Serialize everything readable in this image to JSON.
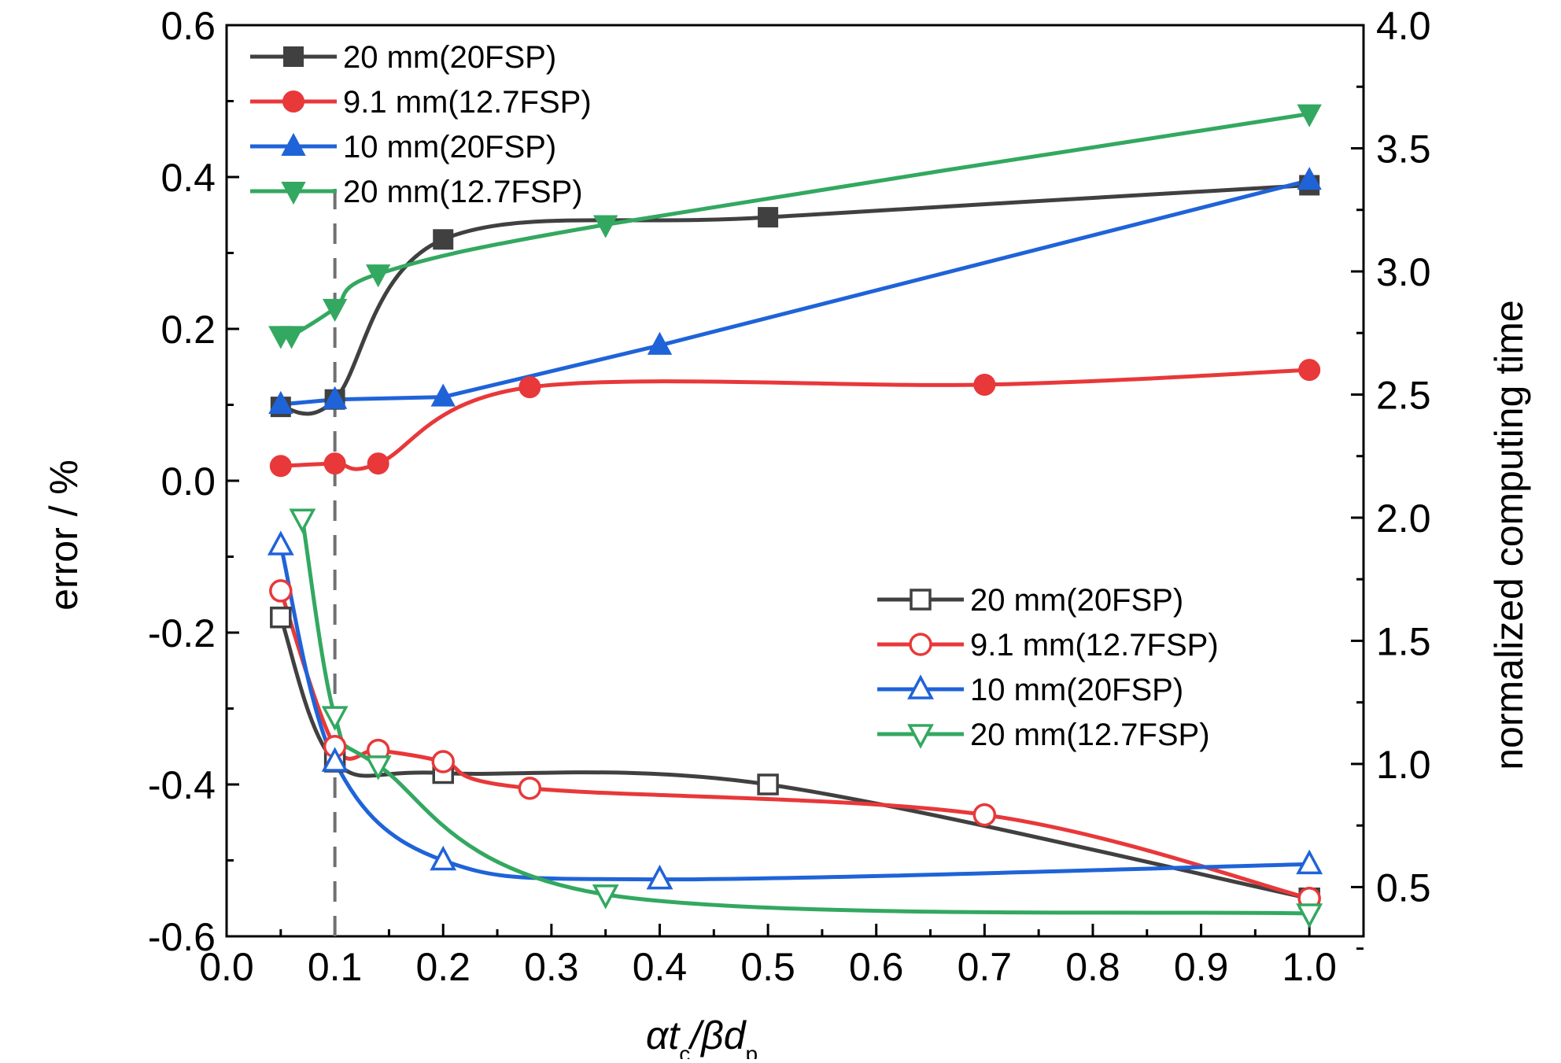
{
  "chart_data": {
    "type": "line",
    "xlabel_parts": [
      "αt",
      "c",
      "/βd",
      "p"
    ],
    "ylabel_left": "error / %",
    "ylabel_right": "normalized computing time",
    "xlim": [
      0.0,
      1.05
    ],
    "ylim_left": [
      -0.6,
      0.6
    ],
    "ylim_right": [
      0.3,
      4.0
    ],
    "x_ticks": [
      "0.0",
      "0.1",
      "0.2",
      "0.3",
      "0.4",
      "0.5",
      "0.6",
      "0.7",
      "0.8",
      "0.9",
      "1.0"
    ],
    "y_left_ticks": [
      "-0.6",
      "-0.4",
      "-0.2",
      "0.0",
      "0.2",
      "0.4",
      "0.6"
    ],
    "y_right_ticks": [
      "0.5",
      "1.0",
      "1.5",
      "2.0",
      "2.5",
      "3.0",
      "3.5",
      "4.0"
    ],
    "reference_line_x": 0.1,
    "grid": false,
    "colors": {
      "black": "#404040",
      "red": "#e8383a",
      "blue": "#1f63d8",
      "green": "#33a860",
      "dash": "#707070"
    },
    "legend_top": [
      {
        "label": "20 mm(20FSP)",
        "color": "black",
        "marker": "square"
      },
      {
        "label": "9.1 mm(12.7FSP)",
        "color": "red",
        "marker": "circle"
      },
      {
        "label": "10 mm(20FSP)",
        "color": "blue",
        "marker": "triangle-up"
      },
      {
        "label": "20 mm(12.7FSP)",
        "color": "green",
        "marker": "triangle-down"
      }
    ],
    "legend_bottom": [
      {
        "label": "20 mm(20FSP)",
        "color": "black",
        "marker": "square"
      },
      {
        "label": "9.1 mm(12.7FSP)",
        "color": "red",
        "marker": "circle"
      },
      {
        "label": "10 mm(20FSP)",
        "color": "blue",
        "marker": "triangle-up"
      },
      {
        "label": "20 mm(12.7FSP)",
        "color": "green",
        "marker": "triangle-down"
      }
    ],
    "series": [
      {
        "name": "20 mm(20FSP)",
        "axis": "right",
        "group": "computing_time",
        "color": "black",
        "marker": "square",
        "filled": true,
        "smooth": true,
        "x": [
          0.05,
          0.1,
          0.2,
          0.5,
          1.0
        ],
        "y": [
          2.45,
          2.48,
          3.13,
          3.22,
          3.35
        ]
      },
      {
        "name": "9.1 mm(12.7FSP)",
        "axis": "right",
        "group": "computing_time",
        "color": "red",
        "marker": "circle",
        "filled": true,
        "smooth": true,
        "x": [
          0.05,
          0.1,
          0.14,
          0.28,
          0.7,
          1.0
        ],
        "y": [
          2.21,
          2.22,
          2.22,
          2.53,
          2.54,
          2.6
        ]
      },
      {
        "name": "10 mm(20FSP)",
        "axis": "right",
        "group": "computing_time",
        "color": "blue",
        "marker": "triangle-up",
        "filled": true,
        "smooth": false,
        "x": [
          0.05,
          0.1,
          0.2,
          0.4,
          1.0
        ],
        "y": [
          2.46,
          2.48,
          2.49,
          2.7,
          3.37
        ]
      },
      {
        "name": "20 mm(12.7FSP)",
        "axis": "right",
        "group": "computing_time",
        "color": "green",
        "marker": "triangle-down",
        "filled": true,
        "smooth": true,
        "x": [
          0.05,
          0.06,
          0.1,
          0.14,
          0.35,
          1.0
        ],
        "y": [
          2.74,
          2.74,
          2.85,
          2.99,
          3.19,
          3.64
        ]
      },
      {
        "name": "20 mm(20FSP)",
        "axis": "left",
        "group": "error",
        "color": "black",
        "marker": "square",
        "filled": false,
        "smooth": true,
        "x": [
          0.05,
          0.1,
          0.2,
          0.5,
          1.0
        ],
        "y": [
          -0.18,
          -0.37,
          -0.385,
          -0.4,
          -0.55
        ]
      },
      {
        "name": "9.1 mm(12.7FSP)",
        "axis": "left",
        "group": "error",
        "color": "red",
        "marker": "circle",
        "filled": false,
        "smooth": true,
        "x": [
          0.05,
          0.1,
          0.14,
          0.2,
          0.28,
          0.7,
          1.0
        ],
        "y": [
          -0.145,
          -0.35,
          -0.355,
          -0.37,
          -0.405,
          -0.44,
          -0.55
        ]
      },
      {
        "name": "10 mm(20FSP)",
        "axis": "left",
        "group": "error",
        "color": "blue",
        "marker": "triangle-up",
        "filled": false,
        "smooth": true,
        "x": [
          0.05,
          0.1,
          0.2,
          0.4,
          1.0
        ],
        "y": [
          -0.085,
          -0.37,
          -0.5,
          -0.525,
          -0.505
        ]
      },
      {
        "name": "20 mm(12.7FSP)",
        "axis": "left",
        "group": "error",
        "color": "green",
        "marker": "triangle-down",
        "filled": false,
        "smooth": true,
        "x": [
          0.07,
          0.1,
          0.14,
          0.35,
          1.0
        ],
        "y": [
          -0.05,
          -0.31,
          -0.375,
          -0.545,
          -0.57
        ]
      }
    ]
  }
}
